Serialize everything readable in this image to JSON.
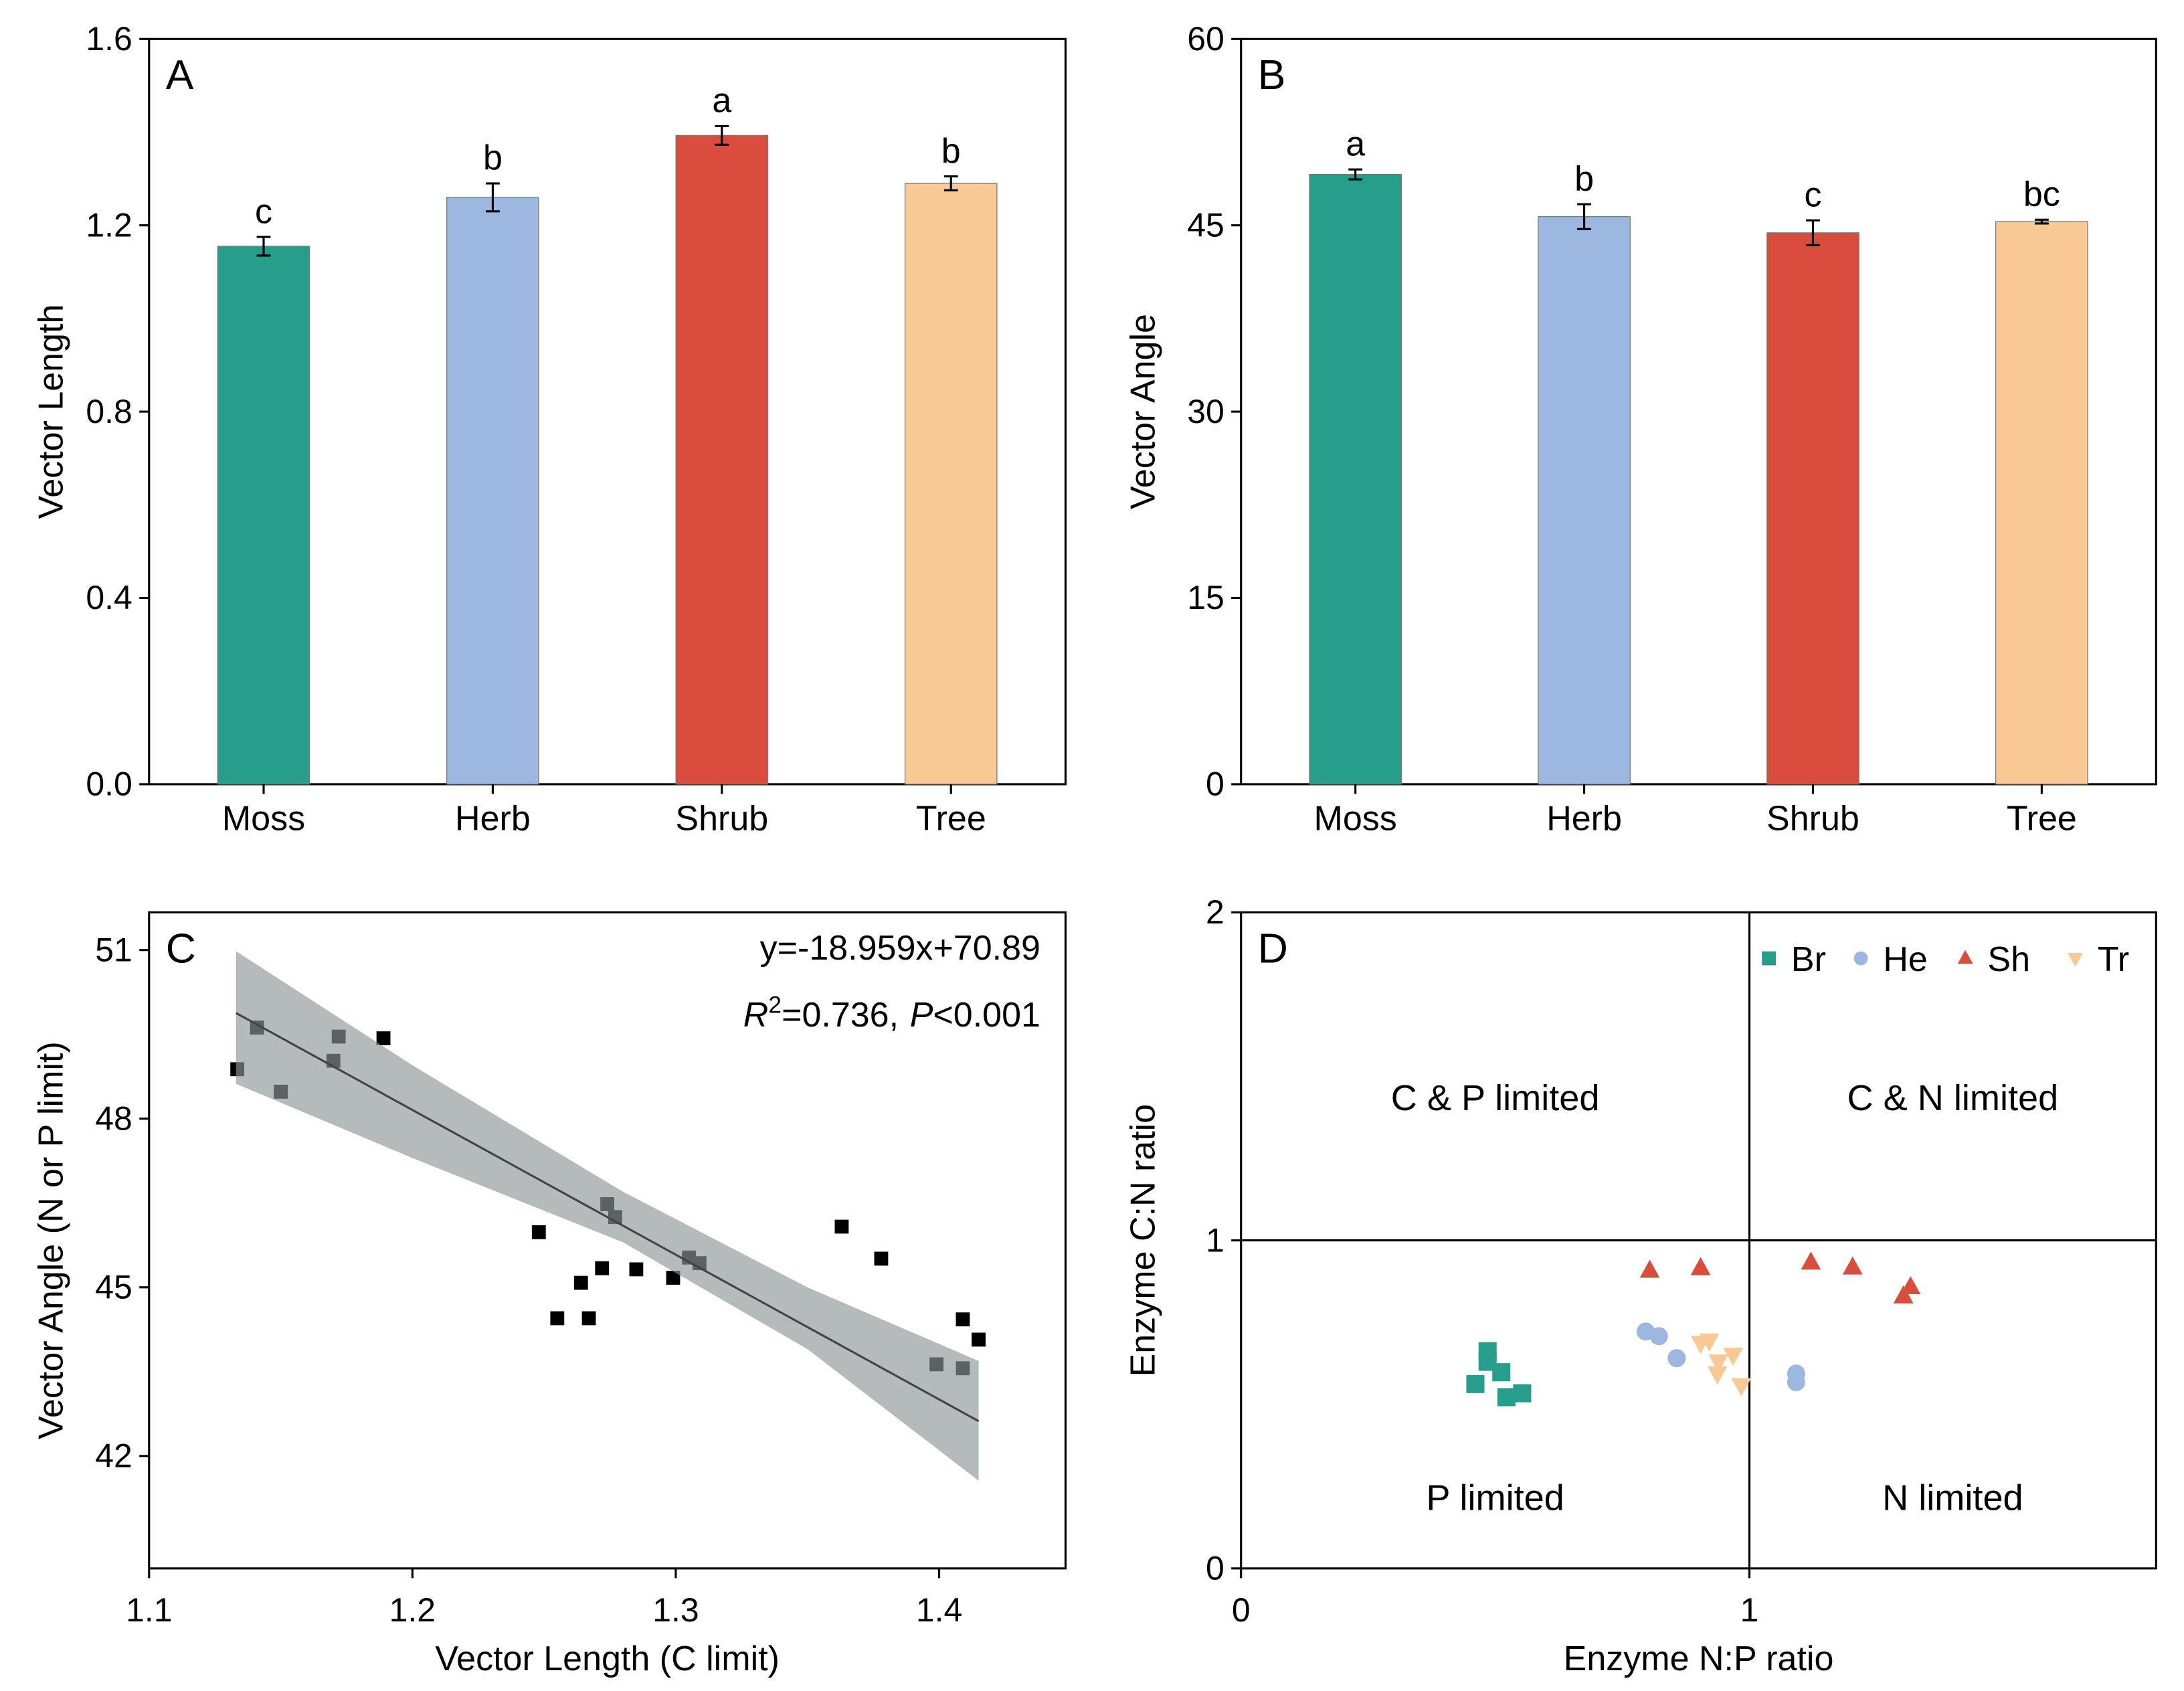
{
  "chart_data": [
    {
      "panel": "A",
      "type": "bar",
      "categories": [
        "Moss",
        "Herb",
        "Shrub",
        "Tree"
      ],
      "values": [
        1.155,
        1.26,
        1.393,
        1.29
      ],
      "errors": [
        0.02,
        0.03,
        0.02,
        0.015
      ],
      "letters": [
        "c",
        "b",
        "a",
        "b"
      ],
      "colors": [
        "#279E8C",
        "#9DB8E0",
        "#DA4D3C",
        "#F9C995"
      ],
      "ylabel": "Vector Length",
      "ylim": [
        0,
        1.6
      ],
      "yticks": [
        "0.0",
        "0.4",
        "0.8",
        "1.2",
        "1.6"
      ]
    },
    {
      "panel": "B",
      "type": "bar",
      "categories": [
        "Moss",
        "Herb",
        "Shrub",
        "Tree"
      ],
      "values": [
        49.1,
        45.7,
        44.4,
        45.3
      ],
      "errors": [
        0.4,
        1.0,
        1.0,
        0.15
      ],
      "letters": [
        "a",
        "b",
        "c",
        "bc"
      ],
      "colors": [
        "#279E8C",
        "#9DB8E0",
        "#DA4D3C",
        "#F9C995"
      ],
      "ylabel": "Vector Angle",
      "ylim": [
        0,
        60
      ],
      "yticks": [
        "0",
        "15",
        "30",
        "45",
        "60"
      ]
    },
    {
      "panel": "C",
      "type": "scatter",
      "xlabel": "Vector Length (C limit)",
      "ylabel": "Vector Angle (N or P limit)",
      "xlim": [
        1.1,
        1.448
      ],
      "ylim": [
        40,
        51.67
      ],
      "xticks": [
        "1.1",
        "1.2",
        "1.3",
        "1.4"
      ],
      "yticks": [
        "42",
        "45",
        "48",
        "51"
      ],
      "equation": "y=-18.959x+70.89",
      "stats": {
        "r2_label": "R",
        "r2_sup": "2",
        "r2_value": "=0.736,",
        "p_label": "P",
        "p_value": "<0.001"
      },
      "points": [
        [
          1.1335,
          48.88
        ],
        [
          1.141,
          49.62
        ],
        [
          1.15,
          48.48
        ],
        [
          1.17,
          49.03
        ],
        [
          1.172,
          49.46
        ],
        [
          1.189,
          49.43
        ],
        [
          1.248,
          45.98
        ],
        [
          1.255,
          44.45
        ],
        [
          1.264,
          45.08
        ],
        [
          1.267,
          44.45
        ],
        [
          1.272,
          45.34
        ],
        [
          1.274,
          46.48
        ],
        [
          1.277,
          46.25
        ],
        [
          1.285,
          45.32
        ],
        [
          1.299,
          45.17
        ],
        [
          1.305,
          45.53
        ],
        [
          1.309,
          45.43
        ],
        [
          1.363,
          46.08
        ],
        [
          1.378,
          45.51
        ],
        [
          1.399,
          43.63
        ],
        [
          1.409,
          44.43
        ],
        [
          1.409,
          43.56
        ],
        [
          1.415,
          44.07
        ]
      ],
      "fit_line": [
        [
          1.133,
          49.88
        ],
        [
          1.415,
          42.62
        ]
      ],
      "ci_upper": [
        [
          1.133,
          50.98
        ],
        [
          1.2,
          48.95
        ],
        [
          1.28,
          46.7
        ],
        [
          1.35,
          45.0
        ],
        [
          1.415,
          43.69
        ]
      ],
      "ci_lower": [
        [
          1.133,
          48.62
        ],
        [
          1.2,
          47.3
        ],
        [
          1.28,
          45.8
        ],
        [
          1.35,
          43.9
        ],
        [
          1.415,
          41.56
        ]
      ],
      "point_color": "#000000",
      "band_color": "#8E9596"
    },
    {
      "panel": "D",
      "type": "scatter",
      "xlabel": "Enzyme N:P ratio",
      "ylabel": "Enzyme C:N ratio",
      "xlim": [
        0,
        1.8
      ],
      "ylim": [
        0,
        2
      ],
      "xticks": [
        "0",
        "1"
      ],
      "yticks": [
        "0",
        "1",
        "2"
      ],
      "quadrants": [
        "C & P limited",
        "C & N limited",
        "P limited",
        "N limited"
      ],
      "legend_position": "top-right",
      "series": [
        {
          "name": "Br",
          "marker": "square",
          "color": "#279E8C",
          "points": [
            [
              0.485,
              0.662
            ],
            [
              0.485,
              0.63
            ],
            [
              0.512,
              0.598
            ],
            [
              0.461,
              0.562
            ],
            [
              0.522,
              0.522
            ],
            [
              0.553,
              0.534
            ]
          ]
        },
        {
          "name": "He",
          "marker": "circle",
          "color": "#9DB8E0",
          "points": [
            [
              0.796,
              0.722
            ],
            [
              0.822,
              0.708
            ],
            [
              0.857,
              0.641
            ],
            [
              1.092,
              0.594
            ],
            [
              1.092,
              0.568
            ]
          ]
        },
        {
          "name": "Sh",
          "marker": "triangle-up",
          "color": "#DA4D3C",
          "points": [
            [
              0.804,
              0.908
            ],
            [
              0.904,
              0.916
            ],
            [
              1.121,
              0.933
            ],
            [
              1.203,
              0.918
            ],
            [
              1.317,
              0.858
            ],
            [
              1.303,
              0.83
            ]
          ]
        },
        {
          "name": "Tr",
          "marker": "triangle-down",
          "color": "#F9C995",
          "points": [
            [
              0.904,
              0.687
            ],
            [
              0.921,
              0.694
            ],
            [
              0.968,
              0.651
            ],
            [
              0.939,
              0.63
            ],
            [
              0.937,
              0.594
            ],
            [
              0.984,
              0.558
            ]
          ]
        }
      ]
    }
  ]
}
